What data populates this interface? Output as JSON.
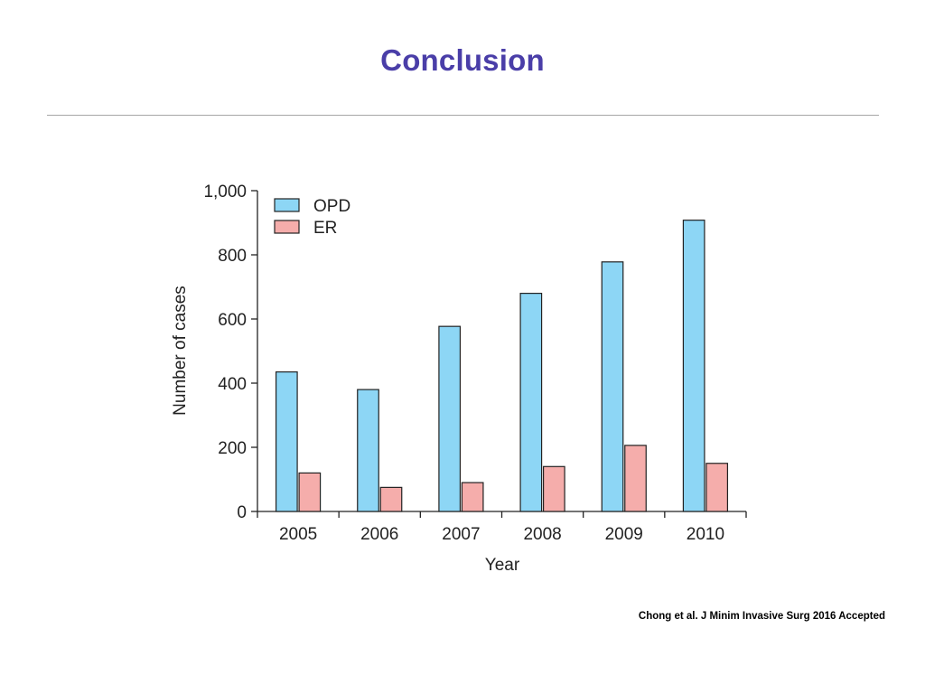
{
  "slide": {
    "title": "Conclusion",
    "citation": "Chong et al. J Minim Invasive Surg 2016 Accepted"
  },
  "chart_data": {
    "type": "bar",
    "title": "",
    "xlabel": "Year",
    "ylabel": "Number of cases",
    "categories": [
      "2005",
      "2006",
      "2007",
      "2008",
      "2009",
      "2010"
    ],
    "series": [
      {
        "name": "OPD",
        "values": [
          435,
          380,
          577,
          680,
          778,
          908
        ],
        "color": "#8dd6f5"
      },
      {
        "name": "ER",
        "values": [
          120,
          75,
          90,
          140,
          206,
          150
        ],
        "color": "#f5adab"
      }
    ],
    "ylim": [
      0,
      1000
    ],
    "yticks": [
      0,
      200,
      400,
      600,
      800,
      1000
    ],
    "ytick_labels": [
      "0",
      "200",
      "400",
      "600",
      "800",
      "1,000"
    ],
    "grid": false,
    "legend_position": "top-left"
  }
}
